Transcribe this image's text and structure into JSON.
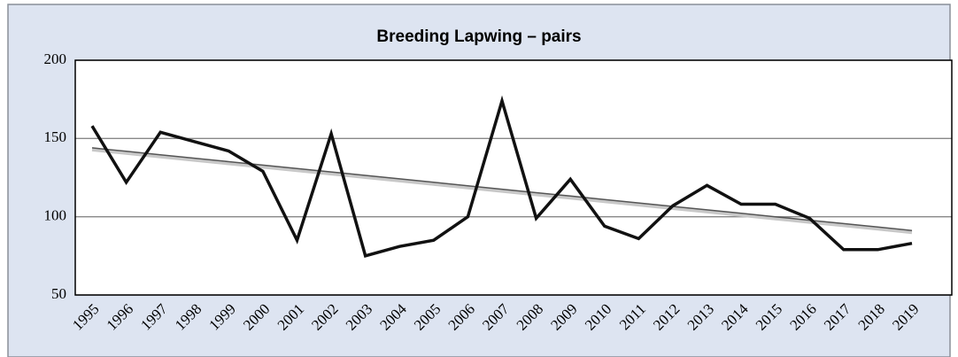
{
  "chart_data": {
    "type": "line",
    "title": "Breeding Lapwing – pairs",
    "categories": [
      "1995",
      "1996",
      "1997",
      "1998",
      "1999",
      "2000",
      "2001",
      "2002",
      "2003",
      "2004",
      "2005",
      "2006",
      "2007",
      "2008",
      "2009",
      "2010",
      "2011",
      "2012",
      "2013",
      "2014",
      "2015",
      "2016",
      "2017",
      "2018",
      "2019"
    ],
    "series": [
      {
        "color": "#111111",
        "values": [
          158,
          122,
          154,
          148,
          142,
          129,
          85,
          153,
          75,
          81,
          85,
          100,
          174,
          99,
          124,
          94,
          86,
          107,
          120,
          108,
          108,
          99,
          79,
          79,
          83
        ]
      },
      {
        "color": "#555555",
        "values": [
          144,
          141.8,
          139.6,
          137.4,
          135.2,
          133,
          130.8,
          128.6,
          126.4,
          124.2,
          122,
          119.8,
          117.6,
          115.4,
          113.2,
          111,
          108.8,
          106.6,
          104.4,
          102.2,
          100,
          97.8,
          95.6,
          93.4,
          91.2
        ]
      }
    ],
    "ylim": [
      50,
      200
    ],
    "yticks": [
      50,
      100,
      150,
      200
    ],
    "grid": true
  }
}
